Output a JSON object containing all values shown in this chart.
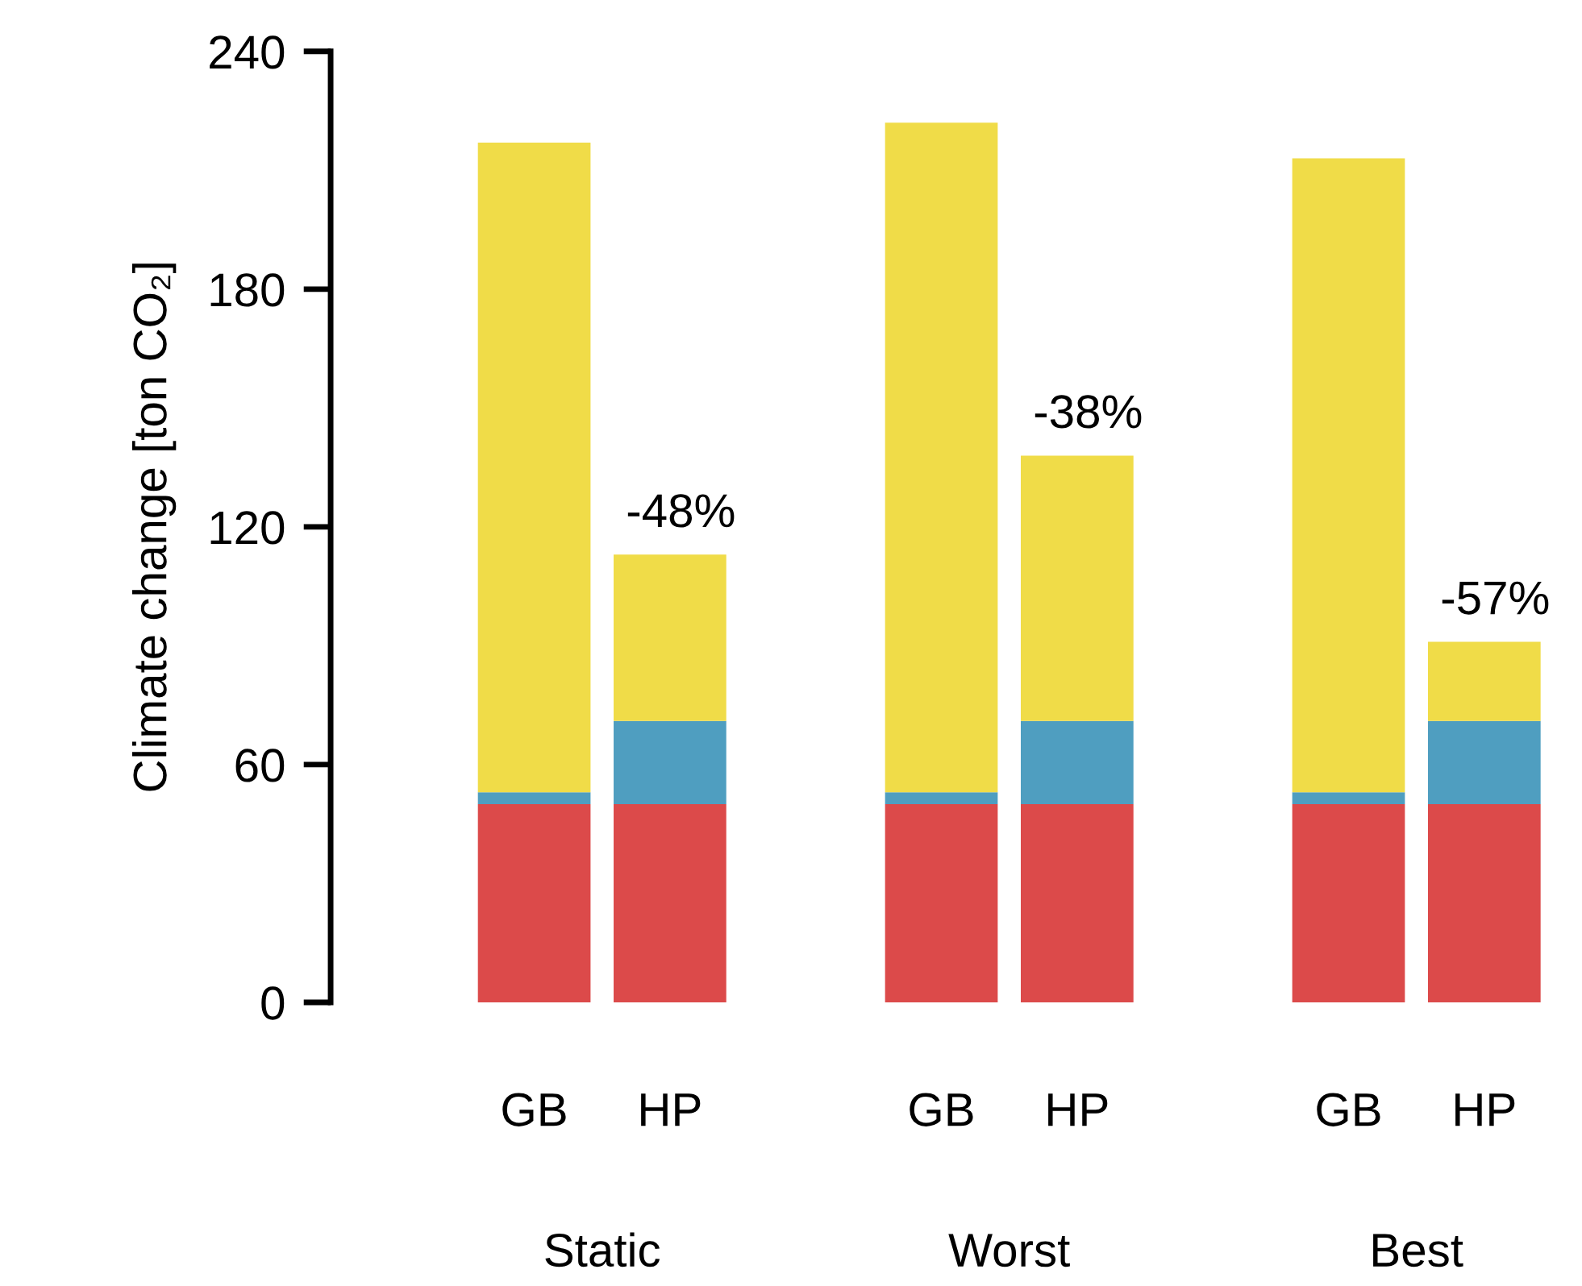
{
  "chart_data": {
    "type": "bar",
    "stacked": true,
    "ylabel": "Climate change [ton CO₂]",
    "categories": [
      "GB",
      "HP",
      null,
      "GB",
      "HP",
      null,
      "GB",
      "HP"
    ],
    "series": [
      {
        "color": "#dc4a4a",
        "values": [
          50,
          50,
          null,
          50,
          50,
          null,
          50,
          50
        ]
      },
      {
        "color": "#4f9ec0",
        "values": [
          3,
          21,
          null,
          3,
          21,
          null,
          3,
          21
        ]
      },
      {
        "color": "#f0dc48",
        "values": [
          164,
          42,
          null,
          169,
          67,
          null,
          160,
          20
        ]
      }
    ],
    "ylim": [
      0,
      240
    ],
    "yticks": [
      0,
      60,
      120,
      180,
      240
    ],
    "grid": false,
    "legend": false,
    "annotations": [
      "Static",
      "Worst",
      "Best",
      {
        "text": "-48%",
        "y": 113
      },
      {
        "text": "-38%",
        "y": 138
      },
      {
        "text": "-57%",
        "y": 91
      }
    ]
  }
}
